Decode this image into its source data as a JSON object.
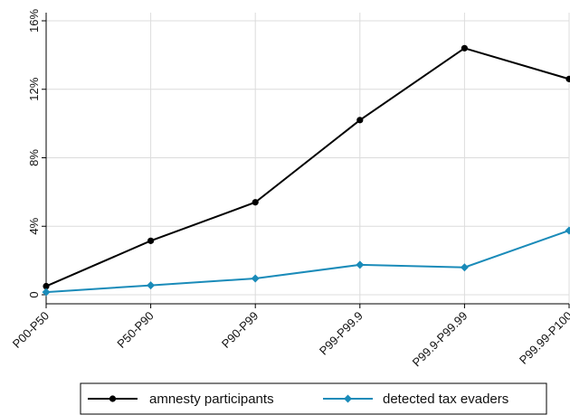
{
  "chart_data": {
    "type": "line",
    "categories": [
      "P00-P50",
      "P50-P90",
      "P90-P99",
      "P99-P99.9",
      "P99.9-P99.99",
      "P99.99-P100"
    ],
    "ylim": [
      0,
      16
    ],
    "yticks": [
      0,
      4,
      8,
      12,
      16
    ],
    "ytick_labels": [
      "0",
      "4%",
      "8%",
      "12%",
      "16%"
    ],
    "grid": true,
    "legend_position": "bottom",
    "series": [
      {
        "name": "amnesty participants",
        "values": [
          0.5,
          3.15,
          5.4,
          10.2,
          14.4,
          12.6
        ],
        "color": "#000000",
        "marker": "circle"
      },
      {
        "name": "detected tax evaders",
        "values": [
          0.15,
          0.55,
          0.95,
          1.75,
          1.6,
          3.75
        ],
        "color": "#1a8bb9",
        "marker": "diamond"
      }
    ]
  }
}
